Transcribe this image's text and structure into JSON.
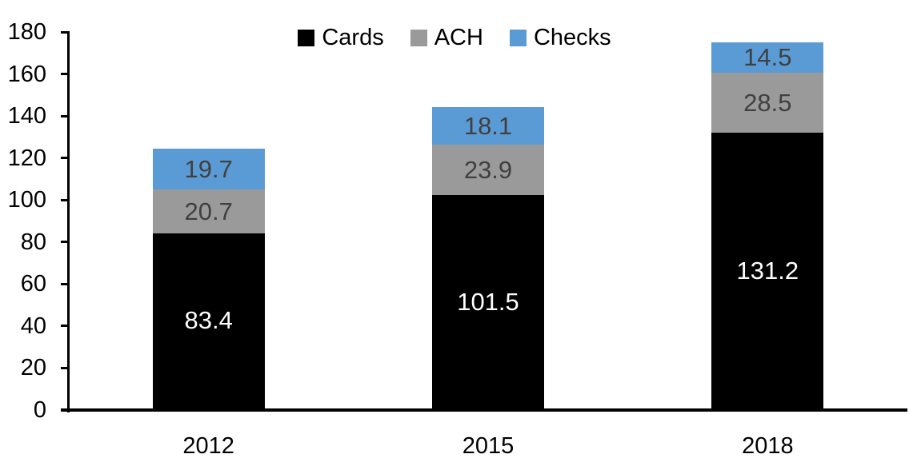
{
  "chart_data": {
    "type": "bar",
    "stacked": true,
    "categories": [
      "2012",
      "2015",
      "2018"
    ],
    "series": [
      {
        "name": "Cards",
        "color": "#000000",
        "label_color": "#ffffff",
        "values": [
          83.4,
          101.5,
          131.2
        ]
      },
      {
        "name": "ACH",
        "color": "#9a9a9a",
        "label_color": "#404040",
        "values": [
          20.7,
          23.9,
          28.5
        ]
      },
      {
        "name": "Checks",
        "color": "#5b9bd5",
        "label_color": "#404040",
        "values": [
          19.7,
          18.1,
          14.5
        ]
      }
    ],
    "ylim": [
      0,
      180
    ],
    "yticks": [
      0,
      20,
      40,
      60,
      80,
      100,
      120,
      140,
      160,
      180
    ],
    "legend_position": "top",
    "legend_labels": [
      "Cards",
      "ACH",
      "Checks"
    ],
    "grid": false,
    "data_labels": true,
    "value_decimals": 1,
    "axis_color": "#000000",
    "background": "#ffffff"
  }
}
